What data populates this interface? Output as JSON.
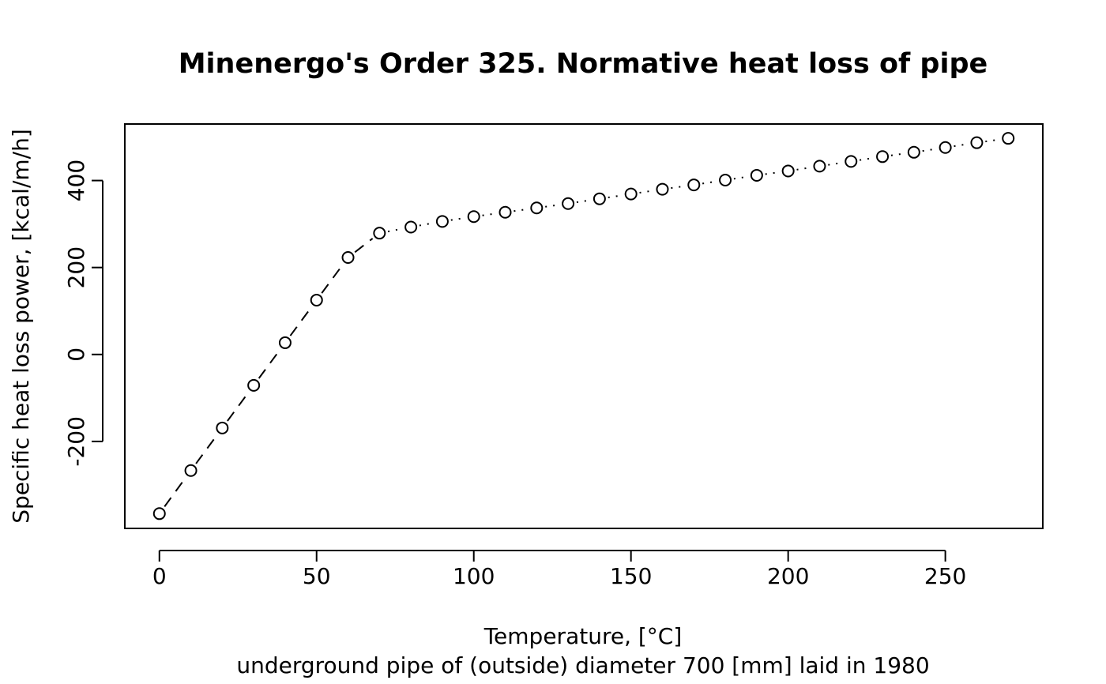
{
  "chart_data": {
    "type": "line",
    "title": "Minenergo's Order 325. Normative heat loss of pipe",
    "xlabel": "Temperature, [°C]",
    "sublabel": "underground pipe of (outside) diameter 700 [mm] laid in 1980",
    "ylabel": "Specific heat loss power, [kcal/m/h]",
    "xlim": [
      -11,
      281
    ],
    "ylim": [
      -400,
      530
    ],
    "xticks": [
      0,
      50,
      100,
      150,
      200,
      250
    ],
    "yticks": [
      -200,
      0,
      200,
      400
    ],
    "x": [
      0,
      10,
      20,
      30,
      40,
      50,
      60,
      70,
      80,
      90,
      100,
      110,
      120,
      130,
      140,
      150,
      160,
      170,
      180,
      190,
      200,
      210,
      220,
      230,
      240,
      250,
      260,
      270
    ],
    "y": [
      -366,
      -267,
      -169,
      -71,
      27,
      125,
      223,
      279,
      293,
      306,
      317,
      327,
      337,
      347,
      358,
      369,
      380,
      390,
      401,
      412,
      422,
      433,
      444,
      455,
      465,
      476,
      487,
      497
    ],
    "line_styles": [
      {
        "from_x": 0,
        "to_x": 70,
        "style": "dashed"
      },
      {
        "from_x": 70,
        "to_x": 270,
        "style": "dotted"
      }
    ],
    "marker": "open-circle",
    "grid": false,
    "legend": "none"
  }
}
